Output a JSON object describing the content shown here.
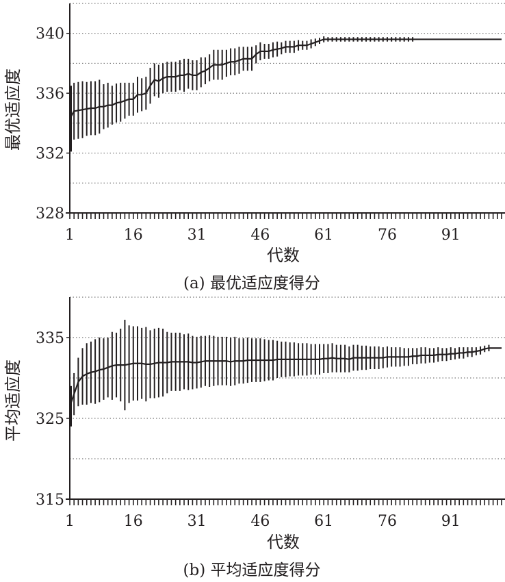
{
  "chart_data": [
    {
      "type": "line",
      "title": "(a) 最优适应度得分",
      "xlabel": "代数",
      "ylabel": "最优适应度",
      "xlim": [
        1,
        103
      ],
      "ylim": [
        328,
        342
      ],
      "xticks": [
        1,
        16,
        31,
        46,
        61,
        76,
        91
      ],
      "yticks": [
        328,
        332,
        336,
        340
      ],
      "grid": true,
      "series": [
        {
          "name": "mean_with_error_bars",
          "x_start": 1,
          "mean": [
            334.3,
            334.8,
            334.85,
            334.9,
            334.95,
            335.0,
            335.0,
            335.1,
            335.1,
            335.2,
            335.2,
            335.35,
            335.4,
            335.5,
            335.6,
            335.6,
            335.9,
            335.9,
            336.0,
            336.5,
            336.9,
            336.8,
            337.0,
            337.1,
            337.1,
            337.1,
            337.2,
            337.2,
            337.3,
            337.2,
            337.2,
            337.4,
            337.5,
            337.7,
            337.9,
            337.9,
            337.9,
            338.0,
            338.1,
            338.1,
            338.2,
            338.3,
            338.3,
            338.3,
            338.6,
            338.8,
            338.8,
            338.8,
            338.9,
            338.95,
            339.0,
            339.1,
            339.1,
            339.1,
            339.2,
            339.2,
            339.2,
            339.3,
            339.4,
            339.5,
            339.6,
            339.6,
            339.6,
            339.6,
            339.6,
            339.6,
            339.6,
            339.6,
            339.6,
            339.6,
            339.6,
            339.6,
            339.6,
            339.6,
            339.6,
            339.6,
            339.6,
            339.6,
            339.6,
            339.6,
            339.6,
            339.6,
            339.6,
            339.6,
            339.6,
            339.6,
            339.6,
            339.6,
            339.6,
            339.6,
            339.6,
            339.6,
            339.6,
            339.6,
            339.6,
            339.6,
            339.6,
            339.6,
            339.6,
            339.6
          ],
          "err": [
            2.2,
            1.9,
            1.9,
            1.9,
            1.8,
            1.8,
            1.8,
            1.8,
            1.5,
            1.5,
            1.3,
            1.3,
            1.3,
            1.2,
            1.1,
            1.1,
            1.2,
            1.1,
            1.1,
            1.2,
            1.1,
            1.1,
            1.0,
            1.0,
            1.0,
            1.0,
            1.0,
            1.1,
            1.0,
            1.0,
            1.0,
            1.0,
            0.9,
            0.9,
            1.0,
            1.0,
            1.0,
            0.9,
            0.9,
            0.9,
            0.9,
            0.8,
            0.8,
            0.8,
            0.6,
            0.6,
            0.5,
            0.5,
            0.5,
            0.5,
            0.4,
            0.4,
            0.4,
            0.4,
            0.35,
            0.3,
            0.3,
            0.3,
            0.25,
            0.2,
            0.2,
            0.15,
            0.15,
            0.15,
            0.15,
            0.15,
            0.15,
            0.15,
            0.15,
            0.15,
            0.15,
            0.15,
            0.15,
            0.15,
            0.15,
            0.15,
            0.15,
            0.15,
            0.15,
            0.15,
            0.15,
            0.15,
            0,
            0,
            0,
            0,
            0,
            0,
            0,
            0,
            0,
            0,
            0,
            0,
            0,
            0,
            0,
            0,
            0,
            0
          ]
        }
      ]
    },
    {
      "type": "line",
      "title": "(b) 平均适应度得分",
      "xlabel": "代数",
      "ylabel": "平均适应度",
      "xlim": [
        1,
        103
      ],
      "ylim": [
        315,
        340
      ],
      "xticks": [
        1,
        16,
        31,
        46,
        61,
        76,
        91
      ],
      "yticks": [
        315,
        325,
        335
      ],
      "grid": true,
      "series": [
        {
          "name": "mean_with_error_bars",
          "x_start": 1,
          "mean": [
            326.5,
            328.0,
            329.5,
            330.2,
            330.5,
            330.7,
            330.8,
            331.0,
            331.1,
            331.3,
            331.5,
            331.6,
            331.6,
            331.6,
            331.7,
            331.8,
            331.8,
            331.8,
            331.7,
            331.7,
            331.8,
            331.9,
            331.9,
            331.9,
            332.0,
            332.0,
            332.0,
            332.0,
            332.0,
            331.9,
            331.9,
            332.0,
            332.1,
            332.1,
            332.1,
            332.1,
            332.1,
            332.1,
            332.0,
            332.1,
            332.1,
            332.1,
            332.2,
            332.2,
            332.2,
            332.2,
            332.2,
            332.2,
            332.2,
            332.3,
            332.3,
            332.3,
            332.3,
            332.3,
            332.3,
            332.3,
            332.3,
            332.3,
            332.3,
            332.3,
            332.4,
            332.4,
            332.5,
            332.4,
            332.4,
            332.4,
            332.3,
            332.5,
            332.5,
            332.5,
            332.5,
            332.5,
            332.5,
            332.5,
            332.5,
            332.6,
            332.6,
            332.6,
            332.6,
            332.6,
            332.6,
            332.7,
            332.7,
            332.8,
            332.8,
            332.8,
            332.8,
            332.9,
            332.9,
            332.9,
            333.0,
            333.0,
            333.1,
            333.1,
            333.2,
            333.2,
            333.3,
            333.4,
            333.6,
            333.7
          ],
          "err": [
            2.5,
            2.6,
            3.0,
            3.5,
            3.8,
            3.8,
            4.0,
            4.0,
            3.8,
            3.7,
            4.2,
            4.0,
            4.5,
            5.6,
            4.8,
            4.6,
            4.6,
            4.4,
            4.6,
            4.2,
            4.3,
            4.3,
            4.2,
            3.8,
            3.6,
            3.6,
            3.6,
            3.4,
            3.5,
            3.3,
            3.2,
            3.2,
            3.1,
            3.2,
            3.1,
            3.0,
            3.0,
            3.0,
            3.0,
            3.0,
            2.8,
            2.8,
            2.8,
            2.7,
            2.7,
            2.7,
            2.6,
            2.5,
            2.5,
            2.3,
            2.2,
            2.2,
            2.1,
            2.1,
            2.0,
            2.0,
            2.0,
            1.9,
            1.9,
            1.9,
            1.8,
            1.8,
            1.8,
            1.7,
            1.7,
            1.7,
            1.6,
            1.6,
            1.6,
            1.5,
            1.5,
            1.4,
            1.4,
            1.4,
            1.3,
            1.3,
            1.2,
            1.2,
            1.2,
            1.1,
            1.1,
            1.0,
            1.0,
            1.0,
            1.0,
            0.9,
            0.9,
            0.9,
            0.8,
            0.8,
            0.8,
            0.7,
            0.7,
            0.7,
            0.6,
            0.6,
            0.5,
            0.5,
            0.4,
            0.4
          ]
        }
      ]
    }
  ]
}
